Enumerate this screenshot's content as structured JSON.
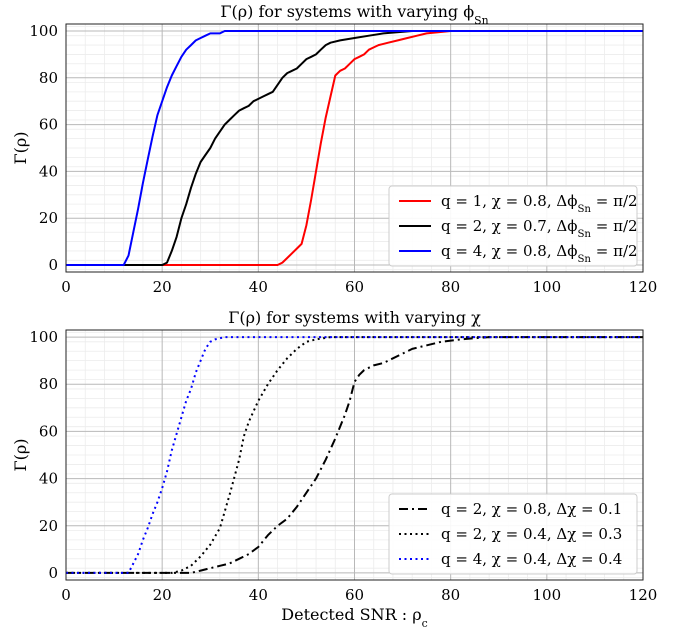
{
  "chart_data": [
    {
      "type": "line",
      "title": "Γ(ρ) for systems with varying ϕ_Sn",
      "title_parts": {
        "main": "Γ(ρ) for systems with varying ϕ",
        "sub": "Sn"
      },
      "xlabel": "",
      "ylabel": "Γ(ρ)",
      "xlim": [
        0,
        120
      ],
      "ylim": [
        -3,
        103
      ],
      "xticks": [
        0,
        20,
        40,
        60,
        80,
        100,
        120
      ],
      "yticks": [
        0,
        20,
        40,
        60,
        80,
        100
      ],
      "grid": true,
      "legend_position": "lower-right",
      "series": [
        {
          "name": "q = 1, χ = 0.8,  Δϕ_Sn = π/2",
          "label": {
            "pre": "q = 1, χ = 0.8,  Δϕ",
            "sub": "Sn",
            "post": " = π/2"
          },
          "color": "#ff0000",
          "dash": "solid",
          "points": [
            [
              0,
              0
            ],
            [
              44,
              0
            ],
            [
              45,
              1
            ],
            [
              46,
              3
            ],
            [
              47,
              5
            ],
            [
              48,
              7
            ],
            [
              49,
              9
            ],
            [
              50,
              17
            ],
            [
              51,
              28
            ],
            [
              52,
              40
            ],
            [
              53,
              52
            ],
            [
              54,
              63
            ],
            [
              55,
              72
            ],
            [
              56,
              81
            ],
            [
              57,
              83
            ],
            [
              58,
              84
            ],
            [
              59,
              86
            ],
            [
              60,
              88
            ],
            [
              61,
              89
            ],
            [
              62,
              90
            ],
            [
              63,
              92
            ],
            [
              64,
              93
            ],
            [
              65,
              94
            ],
            [
              67,
              95
            ],
            [
              69,
              96
            ],
            [
              71,
              97
            ],
            [
              73,
              98
            ],
            [
              75,
              99
            ],
            [
              80,
              100
            ],
            [
              120,
              100
            ]
          ]
        },
        {
          "name": "q = 2, χ = 0.7,  Δϕ_Sn = π/2",
          "label": {
            "pre": "q = 2, χ = 0.7,  Δϕ",
            "sub": "Sn",
            "post": " = π/2"
          },
          "color": "#000000",
          "dash": "solid",
          "points": [
            [
              0,
              0
            ],
            [
              20,
              0
            ],
            [
              21,
              1
            ],
            [
              22,
              6
            ],
            [
              23,
              12
            ],
            [
              24,
              20
            ],
            [
              25,
              26
            ],
            [
              26,
              33
            ],
            [
              27,
              39
            ],
            [
              28,
              44
            ],
            [
              29,
              47
            ],
            [
              30,
              50
            ],
            [
              31,
              54
            ],
            [
              32,
              57
            ],
            [
              33,
              60
            ],
            [
              34,
              62
            ],
            [
              35,
              64
            ],
            [
              36,
              66
            ],
            [
              37,
              67
            ],
            [
              38,
              68
            ],
            [
              39,
              70
            ],
            [
              40,
              71
            ],
            [
              41,
              72
            ],
            [
              42,
              73
            ],
            [
              43,
              74
            ],
            [
              44,
              77
            ],
            [
              45,
              80
            ],
            [
              46,
              82
            ],
            [
              47,
              83
            ],
            [
              48,
              84
            ],
            [
              49,
              86
            ],
            [
              50,
              88
            ],
            [
              51,
              89
            ],
            [
              52,
              90
            ],
            [
              53,
              92
            ],
            [
              54,
              94
            ],
            [
              55,
              95
            ],
            [
              57,
              96
            ],
            [
              60,
              97
            ],
            [
              63,
              98
            ],
            [
              66,
              99
            ],
            [
              72,
              100
            ],
            [
              120,
              100
            ]
          ]
        },
        {
          "name": "q = 4, χ = 0.8,  Δϕ_Sn = π/2",
          "label": {
            "pre": "q = 4, χ = 0.8,  Δϕ",
            "sub": "Sn",
            "post": " = π/2"
          },
          "color": "#0000ff",
          "dash": "solid",
          "points": [
            [
              0,
              0
            ],
            [
              12,
              0
            ],
            [
              13,
              4
            ],
            [
              14,
              14
            ],
            [
              15,
              24
            ],
            [
              16,
              35
            ],
            [
              17,
              45
            ],
            [
              18,
              55
            ],
            [
              19,
              64
            ],
            [
              20,
              70
            ],
            [
              21,
              76
            ],
            [
              22,
              81
            ],
            [
              23,
              85
            ],
            [
              24,
              89
            ],
            [
              25,
              92
            ],
            [
              26,
              94
            ],
            [
              27,
              96
            ],
            [
              28,
              97
            ],
            [
              29,
              98
            ],
            [
              30,
              99
            ],
            [
              31,
              99
            ],
            [
              32,
              99
            ],
            [
              33,
              100
            ],
            [
              120,
              100
            ]
          ]
        }
      ]
    },
    {
      "type": "line",
      "title": "Γ(ρ) for systems with varying χ",
      "title_parts": {
        "main": "Γ(ρ) for systems with varying χ",
        "sub": ""
      },
      "xlabel": "Detected SNR : ρ_c",
      "xlabel_parts": {
        "pre": "Detected SNR : ρ",
        "sub": "c"
      },
      "ylabel": "Γ(ρ)",
      "xlim": [
        0,
        120
      ],
      "ylim": [
        -3,
        103
      ],
      "xticks": [
        0,
        20,
        40,
        60,
        80,
        100,
        120
      ],
      "yticks": [
        0,
        20,
        40,
        60,
        80,
        100
      ],
      "grid": true,
      "legend_position": "lower-right",
      "series": [
        {
          "name": "q = 2, χ = 0.8, Δχ = 0.1",
          "label": {
            "pre": "q = 2, χ = 0.8, Δχ = 0.1",
            "sub": "",
            "post": ""
          },
          "color": "#000000",
          "dash": "dashdot",
          "points": [
            [
              0,
              0
            ],
            [
              26,
              0
            ],
            [
              28,
              1
            ],
            [
              30,
              2
            ],
            [
              32,
              3
            ],
            [
              34,
              4
            ],
            [
              36,
              6
            ],
            [
              38,
              8
            ],
            [
              40,
              11
            ],
            [
              42,
              16
            ],
            [
              44,
              20
            ],
            [
              46,
              23
            ],
            [
              48,
              28
            ],
            [
              50,
              34
            ],
            [
              52,
              40
            ],
            [
              54,
              48
            ],
            [
              56,
              57
            ],
            [
              58,
              67
            ],
            [
              59,
              73
            ],
            [
              60,
              81
            ],
            [
              61,
              84
            ],
            [
              62,
              86
            ],
            [
              64,
              88
            ],
            [
              66,
              89
            ],
            [
              68,
              91
            ],
            [
              70,
              93
            ],
            [
              72,
              95
            ],
            [
              74,
              96
            ],
            [
              76,
              97
            ],
            [
              78,
              98
            ],
            [
              82,
              99
            ],
            [
              88,
              100
            ],
            [
              120,
              100
            ]
          ]
        },
        {
          "name": "q = 2, χ = 0.4, Δχ = 0.3",
          "label": {
            "pre": "q = 2, χ = 0.4, Δχ = 0.3",
            "sub": "",
            "post": ""
          },
          "color": "#000000",
          "dash": "dotted",
          "points": [
            [
              0,
              0
            ],
            [
              22,
              0
            ],
            [
              24,
              1
            ],
            [
              26,
              3
            ],
            [
              28,
              7
            ],
            [
              30,
              12
            ],
            [
              32,
              19
            ],
            [
              34,
              33
            ],
            [
              36,
              48
            ],
            [
              37,
              58
            ],
            [
              38,
              64
            ],
            [
              40,
              73
            ],
            [
              42,
              80
            ],
            [
              44,
              86
            ],
            [
              46,
              91
            ],
            [
              48,
              95
            ],
            [
              50,
              98
            ],
            [
              52,
              99
            ],
            [
              55,
              100
            ],
            [
              120,
              100
            ]
          ]
        },
        {
          "name": "q = 4, χ = 0.4, Δχ = 0.4",
          "label": {
            "pre": "q = 4, χ = 0.4, Δχ = 0.4",
            "sub": "",
            "post": ""
          },
          "color": "#0000ff",
          "dash": "dotted",
          "points": [
            [
              0,
              0
            ],
            [
              13,
              0
            ],
            [
              14,
              4
            ],
            [
              15,
              8
            ],
            [
              16,
              14
            ],
            [
              17,
              19
            ],
            [
              18,
              25
            ],
            [
              19,
              30
            ],
            [
              20,
              36
            ],
            [
              21,
              43
            ],
            [
              22,
              52
            ],
            [
              23,
              59
            ],
            [
              24,
              66
            ],
            [
              25,
              73
            ],
            [
              26,
              78
            ],
            [
              27,
              85
            ],
            [
              28,
              90
            ],
            [
              29,
              95
            ],
            [
              30,
              98
            ],
            [
              31,
              99
            ],
            [
              33,
              100
            ],
            [
              120,
              100
            ]
          ]
        }
      ]
    }
  ]
}
